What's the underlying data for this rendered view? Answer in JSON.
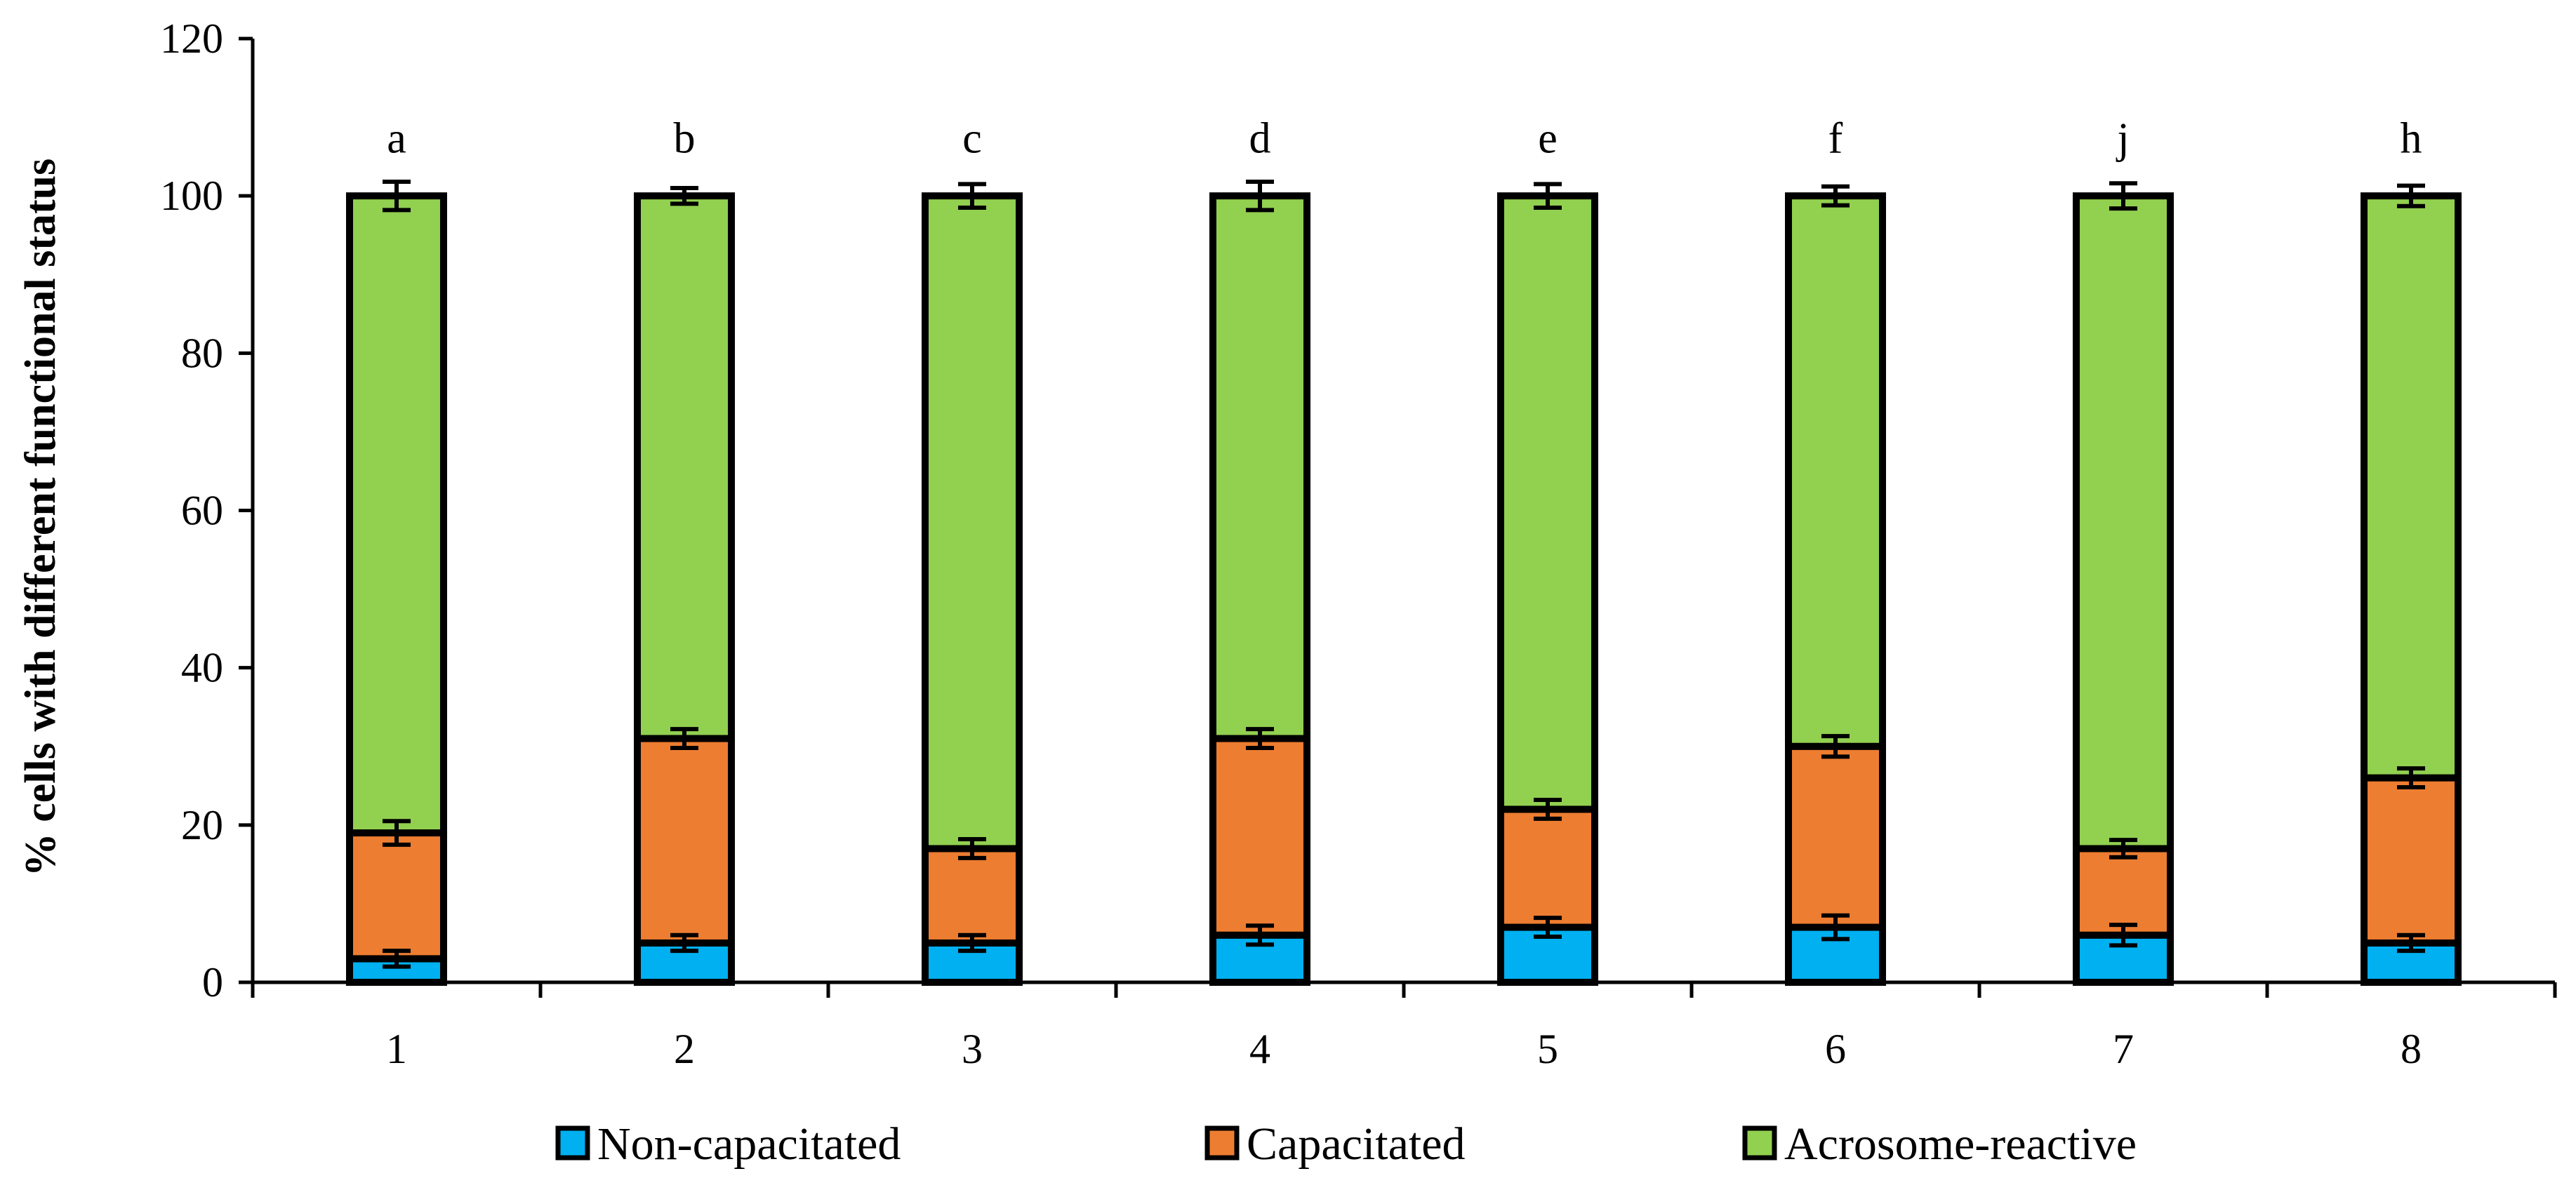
{
  "chart_data": {
    "type": "bar",
    "stacked": true,
    "title": "",
    "xlabel": "",
    "ylabel": "% cells with different functional status",
    "ylim": [
      0,
      120
    ],
    "ytick_step": 20,
    "grid": false,
    "legend_position": "bottom",
    "categories": [
      "1",
      "2",
      "3",
      "4",
      "5",
      "6",
      "7",
      "8"
    ],
    "significance_letters": [
      "a",
      "b",
      "c",
      "d",
      "e",
      "f",
      "j",
      "h"
    ],
    "series": [
      {
        "name": "Non-capacitated",
        "color": "#00B0F0",
        "values": [
          3,
          5,
          5,
          6,
          7,
          7,
          6,
          5
        ],
        "errors": [
          1,
          1,
          1,
          1.2,
          1.2,
          1.5,
          1.3,
          1
        ]
      },
      {
        "name": "Capacitated",
        "color": "#ED7D31",
        "values": [
          16,
          26,
          12,
          25,
          15,
          23,
          11,
          21
        ],
        "errors": [
          1.5,
          1.2,
          1.2,
          1.2,
          1.2,
          1.3,
          1.1,
          1.2
        ]
      },
      {
        "name": "Acrosome-reactive",
        "color": "#92D050",
        "values": [
          81,
          69,
          83,
          69,
          78,
          70,
          83,
          74
        ],
        "errors": [
          1.8,
          1,
          1.5,
          1.8,
          1.5,
          1.2,
          1.6,
          1.3
        ]
      }
    ],
    "axis_color": "#000000"
  }
}
